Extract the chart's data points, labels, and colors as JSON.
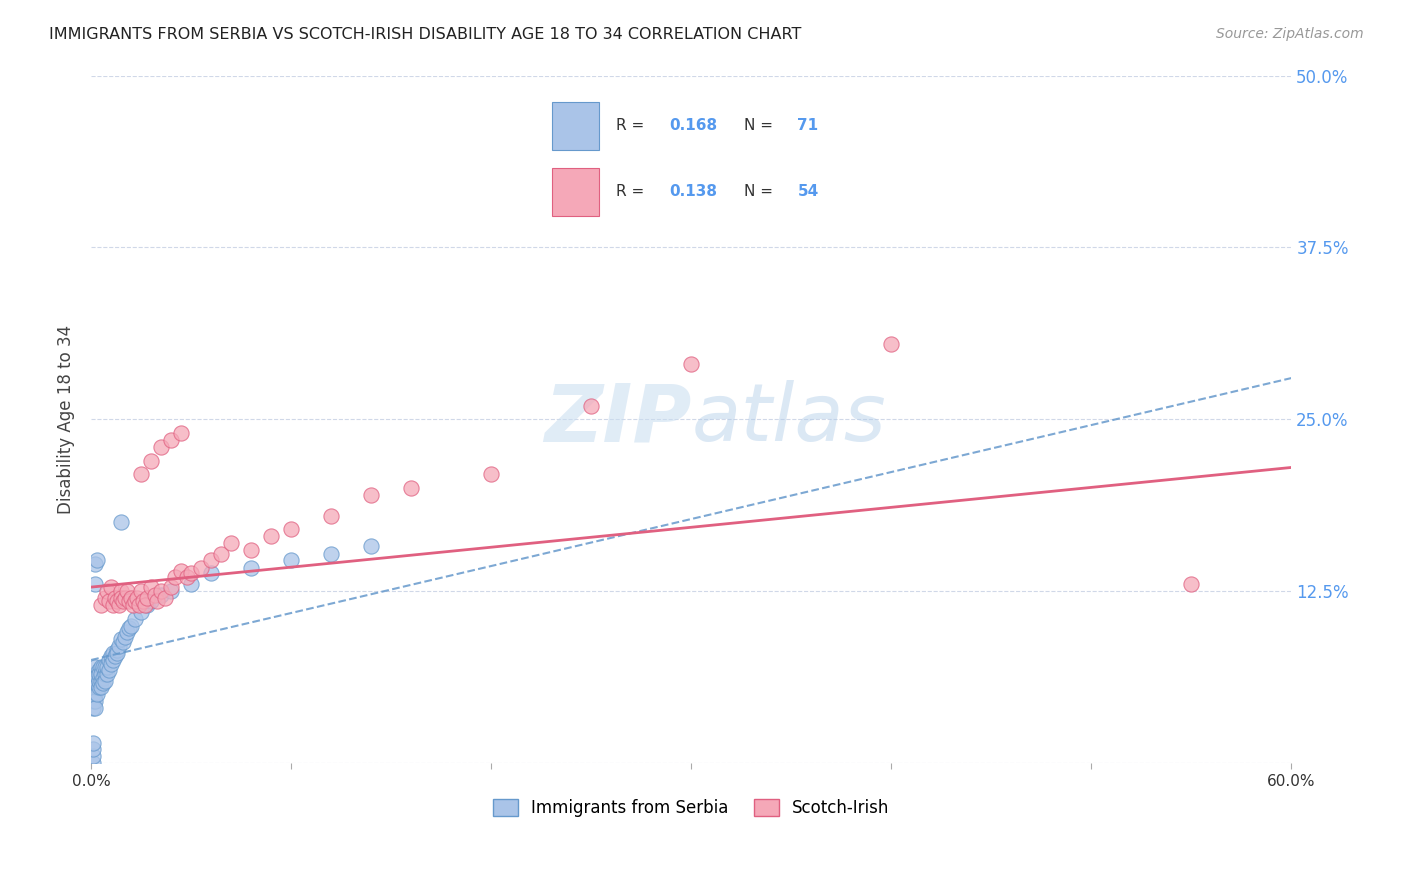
{
  "title": "IMMIGRANTS FROM SERBIA VS SCOTCH-IRISH DISABILITY AGE 18 TO 34 CORRELATION CHART",
  "source": "Source: ZipAtlas.com",
  "ylabel": "Disability Age 18 to 34",
  "xlim": [
    0.0,
    0.6
  ],
  "ylim": [
    0.0,
    0.5
  ],
  "yticks": [
    0.0,
    0.125,
    0.25,
    0.375,
    0.5
  ],
  "ytick_labels": [
    "",
    "12.5%",
    "25.0%",
    "37.5%",
    "50.0%"
  ],
  "xtick_labels_shown": [
    "0.0%",
    "60.0%"
  ],
  "legend_R1": "0.168",
  "legend_N1": "71",
  "legend_R2": "0.138",
  "legend_N2": "54",
  "color_serbia": "#aac4e8",
  "color_scotch": "#f5a8b8",
  "trendline_serbia_color": "#6699cc",
  "trendline_scotch_color": "#e06080",
  "serbia_x": [
    0.001,
    0.001,
    0.001,
    0.001,
    0.001,
    0.002,
    0.002,
    0.002,
    0.002,
    0.002,
    0.002,
    0.002,
    0.002,
    0.002,
    0.003,
    0.003,
    0.003,
    0.003,
    0.003,
    0.004,
    0.004,
    0.004,
    0.004,
    0.005,
    0.005,
    0.005,
    0.005,
    0.006,
    0.006,
    0.006,
    0.007,
    0.007,
    0.007,
    0.008,
    0.008,
    0.009,
    0.009,
    0.01,
    0.01,
    0.011,
    0.011,
    0.012,
    0.013,
    0.013,
    0.014,
    0.015,
    0.016,
    0.017,
    0.018,
    0.019,
    0.02,
    0.022,
    0.025,
    0.028,
    0.03,
    0.035,
    0.04,
    0.05,
    0.06,
    0.08,
    0.1,
    0.12,
    0.14,
    0.002,
    0.003,
    0.001,
    0.001,
    0.001,
    0.001,
    0.015,
    0.002
  ],
  "serbia_y": [
    0.05,
    0.055,
    0.06,
    0.045,
    0.04,
    0.06,
    0.055,
    0.05,
    0.045,
    0.04,
    0.065,
    0.07,
    0.058,
    0.062,
    0.055,
    0.06,
    0.05,
    0.058,
    0.063,
    0.068,
    0.055,
    0.06,
    0.065,
    0.07,
    0.06,
    0.055,
    0.065,
    0.07,
    0.062,
    0.058,
    0.065,
    0.07,
    0.06,
    0.065,
    0.07,
    0.075,
    0.068,
    0.078,
    0.072,
    0.08,
    0.075,
    0.078,
    0.082,
    0.08,
    0.085,
    0.09,
    0.088,
    0.092,
    0.095,
    0.098,
    0.1,
    0.105,
    0.11,
    0.115,
    0.118,
    0.122,
    0.125,
    0.13,
    0.138,
    0.142,
    0.148,
    0.152,
    0.158,
    0.145,
    0.148,
    0.0,
    0.005,
    0.01,
    0.015,
    0.175,
    0.13
  ],
  "scotch_x": [
    0.005,
    0.007,
    0.008,
    0.009,
    0.01,
    0.011,
    0.012,
    0.013,
    0.014,
    0.015,
    0.015,
    0.016,
    0.017,
    0.018,
    0.019,
    0.02,
    0.021,
    0.022,
    0.023,
    0.024,
    0.025,
    0.026,
    0.027,
    0.028,
    0.03,
    0.032,
    0.033,
    0.035,
    0.037,
    0.04,
    0.042,
    0.045,
    0.048,
    0.05,
    0.055,
    0.06,
    0.065,
    0.07,
    0.08,
    0.09,
    0.1,
    0.12,
    0.14,
    0.16,
    0.2,
    0.25,
    0.3,
    0.4,
    0.55,
    0.025,
    0.03,
    0.035,
    0.04,
    0.045
  ],
  "scotch_y": [
    0.115,
    0.12,
    0.125,
    0.118,
    0.128,
    0.115,
    0.12,
    0.118,
    0.115,
    0.125,
    0.12,
    0.118,
    0.12,
    0.125,
    0.118,
    0.12,
    0.115,
    0.118,
    0.12,
    0.115,
    0.125,
    0.118,
    0.115,
    0.12,
    0.128,
    0.122,
    0.118,
    0.125,
    0.12,
    0.128,
    0.135,
    0.14,
    0.135,
    0.138,
    0.142,
    0.148,
    0.152,
    0.16,
    0.155,
    0.165,
    0.17,
    0.18,
    0.195,
    0.2,
    0.21,
    0.26,
    0.29,
    0.305,
    0.13,
    0.21,
    0.22,
    0.23,
    0.235,
    0.24
  ],
  "background_color": "#ffffff",
  "grid_color": "#d0d8e8",
  "title_color": "#222222",
  "axis_label_color": "#444444",
  "tick_label_color_y": "#5599ee",
  "watermark_color": "#d0e4f0"
}
